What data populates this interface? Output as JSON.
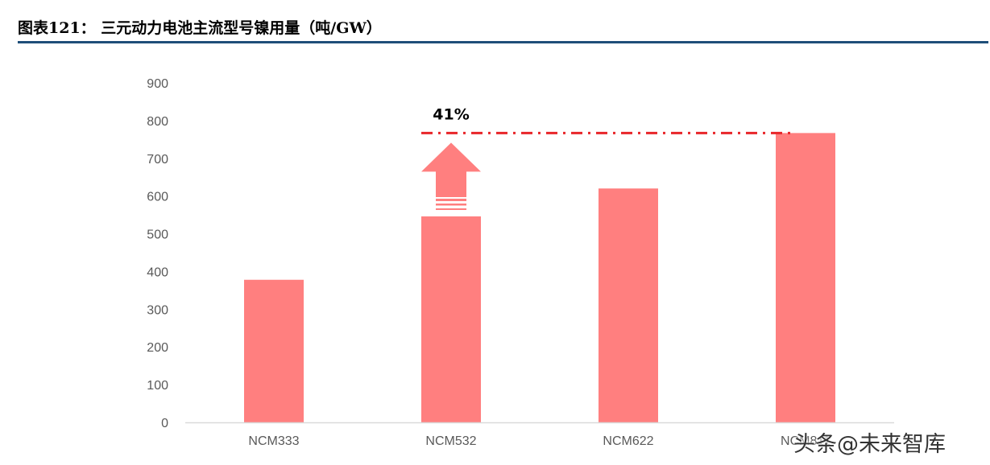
{
  "figure": {
    "title": "图表121：  三元动力电池主流型号镍用量（吨/GW）"
  },
  "watermark": "头条@未来智库",
  "chart_data": {
    "type": "bar",
    "categories": [
      "NCM333",
      "NCM532",
      "NCM622",
      "NCM811"
    ],
    "values": [
      378,
      546,
      620,
      767
    ],
    "ylim": [
      0,
      900
    ],
    "yticks": [
      0,
      100,
      200,
      300,
      400,
      500,
      600,
      700,
      800,
      900
    ],
    "grid": false,
    "legend": "none",
    "annotation": {
      "text": "41%",
      "from_category": "NCM532",
      "to_category": "NCM811",
      "reference_value": 767
    },
    "colors": {
      "bar": "#ff7f7f",
      "arrow": "#ff7f7f",
      "reference_line": "#e8262a",
      "axis": "#d9d9d9",
      "title_rule": "#1f4e79"
    }
  }
}
